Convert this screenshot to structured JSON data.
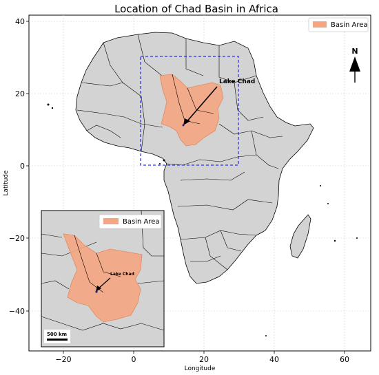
{
  "map": {
    "title": "Location of Chad Basin in Africa",
    "xlabel": "Longitude",
    "ylabel": "Latitude",
    "x_ticks": [
      "−20",
      "0",
      "20",
      "40",
      "60"
    ],
    "y_ticks": [
      "40",
      "20",
      "0",
      "−20",
      "−40"
    ],
    "legend_label": "Basin Area",
    "north_label": "N",
    "annotation": "Lake Chad",
    "colors": {
      "land": "#d3d3d3",
      "basin": "#f4a582",
      "box": "#0000ff"
    }
  },
  "inset": {
    "legend_label": "Basin Area",
    "annotation": "Lake Chad",
    "scale_label": "500 km"
  }
}
